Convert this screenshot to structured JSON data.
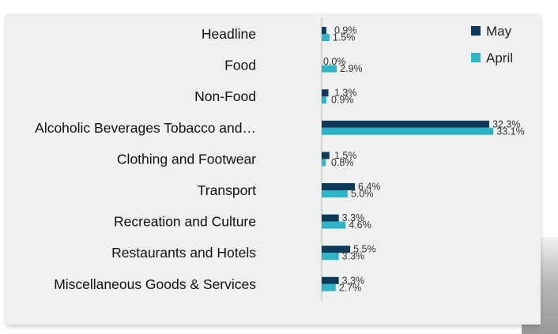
{
  "chart_data": {
    "type": "bar",
    "orientation": "horizontal",
    "categories": [
      "Headline",
      "Food",
      "Non-Food",
      "Alcoholic Beverages Tobacco and…",
      "Clothing and Footwear",
      "Transport",
      "Recreation and Culture",
      "Restaurants and Hotels",
      "Miscellaneous Goods & Services"
    ],
    "series": [
      {
        "name": "May",
        "color": "#0f3a5a",
        "values": [
          0.9,
          0.0,
          1.3,
          32.3,
          1.5,
          6.4,
          3.3,
          5.5,
          3.3
        ],
        "labels": [
          "0.9%",
          "0.0%",
          "1.3%",
          "32.3%",
          "1.5%",
          "6.4%",
          "3.3%",
          "5.5%",
          "3.3%"
        ]
      },
      {
        "name": "April",
        "color": "#2fb3c6",
        "values": [
          1.5,
          2.9,
          0.9,
          33.1,
          0.8,
          5.0,
          4.6,
          3.3,
          2.7
        ],
        "labels": [
          "1.5%",
          "2.9%",
          "0.9%",
          "33.1%",
          "0.8%",
          "5.0%",
          "4.6%",
          "3.3%",
          "2.7%"
        ]
      }
    ],
    "xlim": [
      0,
      35
    ],
    "legend": "top-right",
    "grid": false
  }
}
